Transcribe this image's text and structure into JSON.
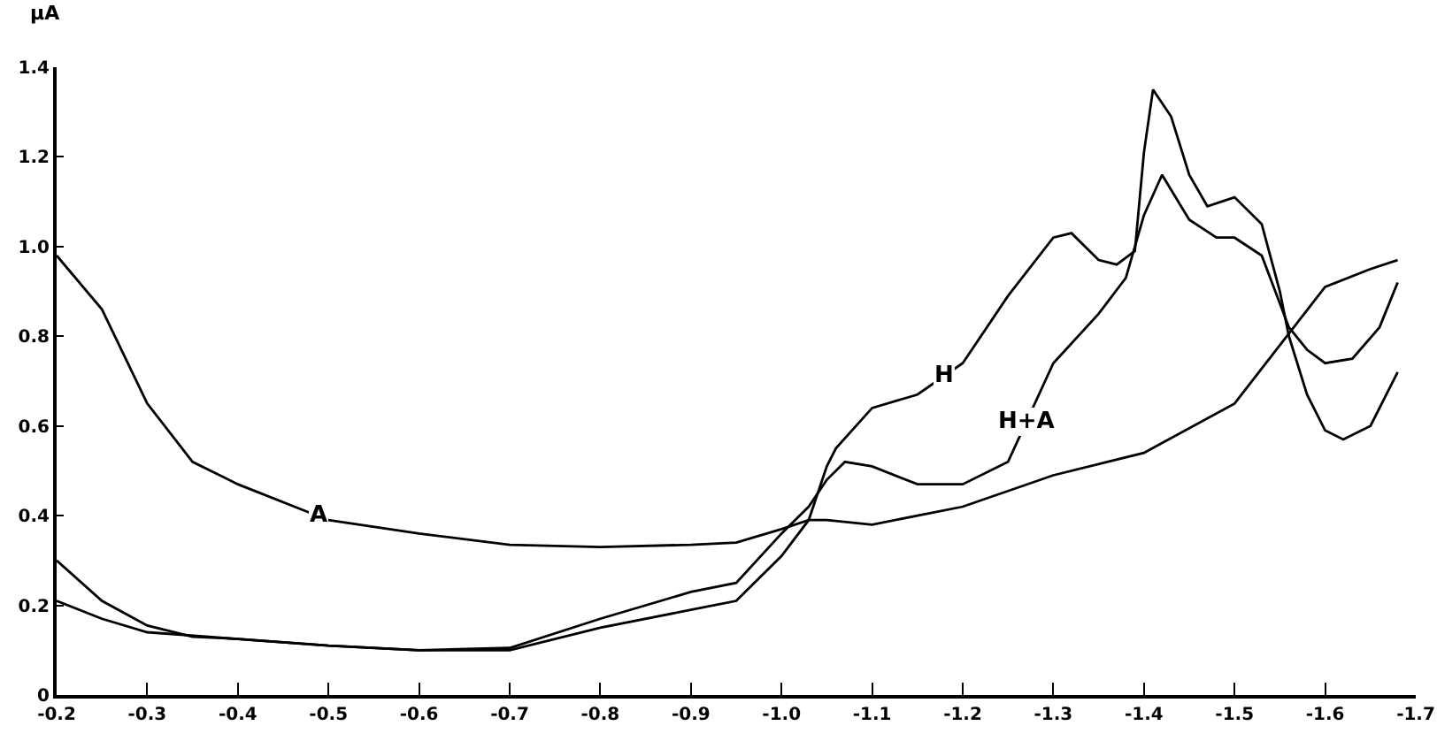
{
  "chart_data": {
    "type": "line",
    "ylabel": "µA",
    "xlim": [
      -0.2,
      -1.7
    ],
    "ylim": [
      0,
      1.4
    ],
    "xticks": [
      -0.2,
      -0.3,
      -0.4,
      -0.5,
      -0.6,
      -0.7,
      -0.8,
      -0.9,
      {
        "value": -1,
        "label": "-1.0"
      },
      -1.1,
      -1.2,
      -1.3,
      -1.4,
      -1.5,
      -1.6,
      -1.7
    ],
    "yticks": [
      0,
      0.2,
      0.4,
      0.6,
      0.8,
      {
        "value": 1,
        "label": "1.0"
      },
      1.2,
      1.4
    ],
    "marker": "none",
    "line_style": "solid",
    "series": [
      {
        "color": "#000000",
        "x": [
          -0.2,
          -0.25,
          -0.3,
          -0.35,
          -0.4,
          -0.5,
          -0.6,
          -0.7,
          -0.8,
          -0.9,
          -0.95,
          -1.0,
          -1.03,
          -1.05,
          -1.1,
          -1.2,
          -1.3,
          -1.4,
          -1.5,
          -1.55,
          -1.6,
          -1.65,
          -1.68
        ],
        "values": [
          0.98,
          0.86,
          0.65,
          0.52,
          0.47,
          0.39,
          0.36,
          0.335,
          0.33,
          0.335,
          0.34,
          0.37,
          0.39,
          0.39,
          0.38,
          0.42,
          0.49,
          0.54,
          0.65,
          0.78,
          0.91,
          0.95,
          0.97
        ]
      },
      {
        "color": "#000000",
        "x": [
          -0.2,
          -0.25,
          -0.3,
          -0.35,
          -0.4,
          -0.5,
          -0.6,
          -0.7,
          -0.8,
          -0.9,
          -0.95,
          -1.0,
          -1.03,
          -1.05,
          -1.07,
          -1.1,
          -1.15,
          -1.2,
          -1.25,
          -1.3,
          -1.35,
          -1.38,
          -1.4,
          -1.42,
          -1.45,
          -1.48,
          -1.5,
          -1.53,
          -1.56,
          -1.58,
          -1.6,
          -1.63,
          -1.66,
          -1.68
        ],
        "values": [
          0.3,
          0.21,
          0.155,
          0.13,
          0.125,
          0.11,
          0.1,
          0.105,
          0.17,
          0.23,
          0.25,
          0.36,
          0.42,
          0.48,
          0.52,
          0.51,
          0.47,
          0.47,
          0.52,
          0.74,
          0.85,
          0.93,
          1.07,
          1.16,
          1.06,
          1.02,
          1.02,
          0.98,
          0.82,
          0.77,
          0.74,
          0.75,
          0.82,
          0.92
        ]
      },
      {
        "color": "#000000",
        "x": [
          -0.2,
          -0.25,
          -0.3,
          -0.4,
          -0.5,
          -0.6,
          -0.7,
          -0.8,
          -0.9,
          -0.95,
          -1.0,
          -1.03,
          -1.05,
          -1.06,
          -1.1,
          -1.15,
          -1.2,
          -1.25,
          -1.3,
          -1.32,
          -1.35,
          -1.37,
          -1.39,
          -1.4,
          -1.41,
          -1.43,
          -1.45,
          -1.47,
          -1.5,
          -1.53,
          -1.55,
          -1.56,
          -1.58,
          -1.6,
          -1.62,
          -1.65,
          -1.68
        ],
        "values": [
          0.21,
          0.17,
          0.14,
          0.125,
          0.11,
          0.1,
          0.1,
          0.15,
          0.19,
          0.21,
          0.31,
          0.39,
          0.51,
          0.55,
          0.64,
          0.67,
          0.74,
          0.89,
          1.02,
          1.03,
          0.97,
          0.96,
          0.99,
          1.21,
          1.35,
          1.29,
          1.16,
          1.09,
          1.11,
          1.05,
          0.9,
          0.8,
          0.67,
          0.59,
          0.57,
          0.6,
          0.72
        ]
      }
    ],
    "annotations": [
      {
        "text": "A",
        "x": -0.49,
        "y": 0.4
      },
      {
        "text": "H",
        "x": -1.18,
        "y": 0.71
      },
      {
        "text": "H+A",
        "x": -1.27,
        "y": 0.61
      }
    ]
  }
}
